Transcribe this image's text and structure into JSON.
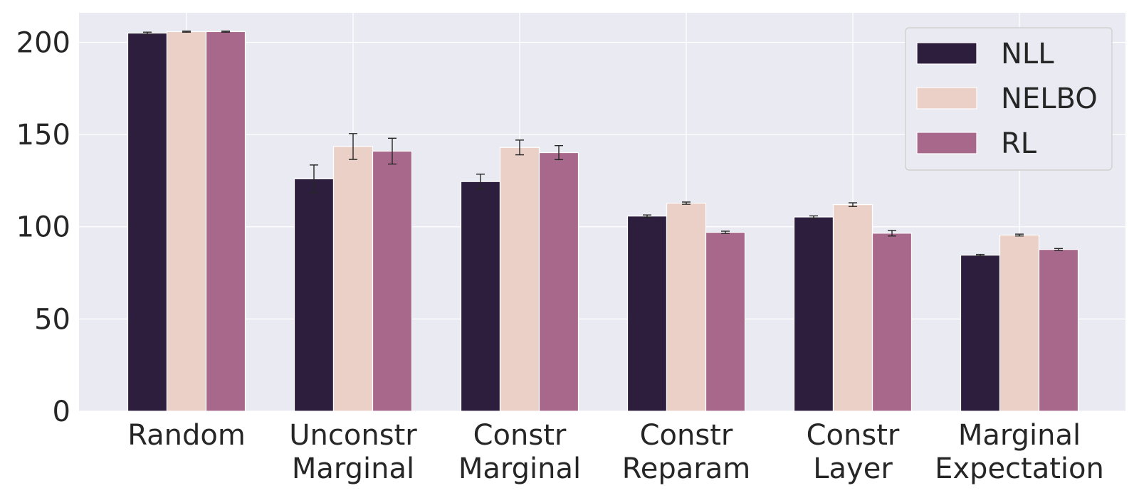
{
  "chart_data": {
    "type": "bar",
    "title": "",
    "xlabel": "",
    "ylabel": "",
    "ylim": [
      0,
      216
    ],
    "yticks": [
      0,
      50,
      100,
      150,
      200
    ],
    "grid": true,
    "legend_position": "top-right",
    "categories": [
      [
        "Random"
      ],
      [
        "Unconstr",
        "Marginal"
      ],
      [
        "Constr",
        "Marginal"
      ],
      [
        "Constr",
        "Reparam"
      ],
      [
        "Constr",
        "Layer"
      ],
      [
        "Marginal",
        "Expectation"
      ]
    ],
    "series": [
      {
        "name": "NLL",
        "color": "#2d1e3e",
        "values": [
          205.0,
          126.0,
          124.5,
          105.8,
          105.3,
          84.6
        ],
        "errors": [
          0.5,
          7.5,
          4.0,
          0.6,
          0.6,
          0.4
        ]
      },
      {
        "name": "NELBO",
        "color": "#ebd0c8",
        "values": [
          205.8,
          143.5,
          143.0,
          112.8,
          112.0,
          95.5
        ],
        "errors": [
          0.3,
          7.0,
          4.0,
          0.6,
          1.0,
          0.5
        ]
      },
      {
        "name": "RL",
        "color": "#a8688c",
        "values": [
          205.8,
          141.0,
          140.2,
          97.0,
          96.5,
          87.7
        ],
        "errors": [
          0.3,
          7.0,
          3.8,
          0.6,
          1.5,
          0.5
        ]
      }
    ]
  }
}
